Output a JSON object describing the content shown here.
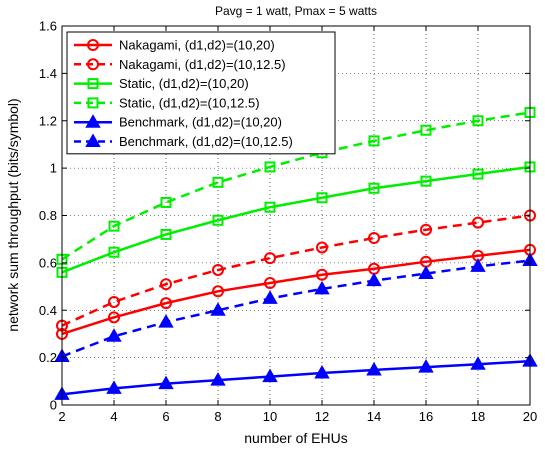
{
  "chart_data": {
    "type": "line",
    "title": "Pavg = 1 watt, Pmax = 5 watts",
    "xlabel": "number of EHUs",
    "ylabel": "network sum throughput (bits/symbol)",
    "xlim": [
      2,
      20
    ],
    "ylim": [
      0,
      1.6
    ],
    "xticks": [
      2,
      4,
      6,
      8,
      10,
      12,
      14,
      16,
      18,
      20
    ],
    "xtick_labels": [
      "2",
      "4",
      "6",
      "8",
      "10",
      "12",
      "14",
      "16",
      "18",
      "20"
    ],
    "yticks": [
      0,
      0.2,
      0.4,
      0.6,
      0.8,
      1.0,
      1.2,
      1.4,
      1.6
    ],
    "ytick_labels": [
      "0",
      "0.2",
      "0.4",
      "0.6",
      "0.8",
      "1",
      "1.2",
      "1.4",
      "1.6"
    ],
    "grid": true,
    "legend_position": "top-left",
    "x": [
      2,
      4,
      6,
      8,
      10,
      12,
      14,
      16,
      18,
      20
    ],
    "series": [
      {
        "name": "Nakagami, (d1,d2)=(10,20)",
        "color": "#ff0000",
        "dash": "solid",
        "marker": "circle",
        "values": [
          0.3,
          0.37,
          0.43,
          0.48,
          0.515,
          0.55,
          0.575,
          0.605,
          0.63,
          0.655
        ]
      },
      {
        "name": "Nakagami, (d1,d2)=(10,12.5)",
        "color": "#ff0000",
        "dash": "dashed",
        "marker": "circle",
        "values": [
          0.335,
          0.435,
          0.51,
          0.57,
          0.62,
          0.665,
          0.705,
          0.74,
          0.77,
          0.8
        ]
      },
      {
        "name": "Static, (d1,d2)=(10,20)",
        "color": "#00ee00",
        "dash": "solid",
        "marker": "square",
        "values": [
          0.56,
          0.645,
          0.72,
          0.78,
          0.835,
          0.875,
          0.915,
          0.945,
          0.975,
          1.005
        ]
      },
      {
        "name": "Static, (d1,d2)=(10,12.5)",
        "color": "#00ee00",
        "dash": "dashed",
        "marker": "square",
        "values": [
          0.615,
          0.755,
          0.855,
          0.94,
          1.005,
          1.065,
          1.115,
          1.16,
          1.2,
          1.235
        ]
      },
      {
        "name": "Benchmark, (d1,d2)=(10,20)",
        "color": "#0000ff",
        "dash": "solid",
        "marker": "triangle",
        "values": [
          0.045,
          0.07,
          0.09,
          0.105,
          0.12,
          0.135,
          0.148,
          0.16,
          0.172,
          0.185
        ]
      },
      {
        "name": "Benchmark, (d1,d2)=(10,12.5)",
        "color": "#0000ff",
        "dash": "dashed",
        "marker": "triangle",
        "values": [
          0.205,
          0.29,
          0.35,
          0.4,
          0.45,
          0.49,
          0.525,
          0.555,
          0.585,
          0.61
        ]
      }
    ]
  }
}
